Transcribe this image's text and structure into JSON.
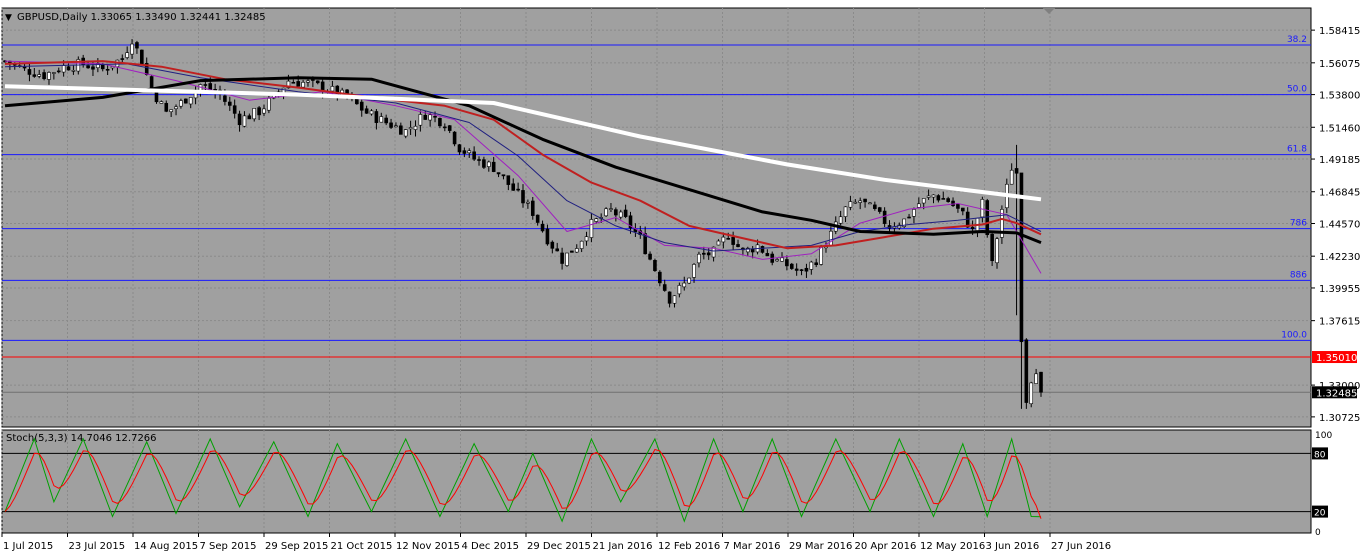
{
  "window": {
    "symbol_title": "GBPUSD,Daily",
    "ohlc": "1.33065 1.33490 1.32441 1.32485",
    "collapse_icon": "triangle-down-icon"
  },
  "colors": {
    "background": "#a0a0a0",
    "grid": "#8a8a8a",
    "candle_up": "#ffffff",
    "candle_down": "#000000",
    "ma_white": "#ffffff",
    "ma_black": "#000000",
    "ma_red": "#c02020",
    "ma_navy": "#202080",
    "ma_purple": "#a020c0",
    "fib_line": "#1a1aff",
    "price_line": "#ff0000",
    "stoch_main": "#00a000",
    "stoch_signal": "#ff0000"
  },
  "chart_data": [
    {
      "type": "candlestick",
      "title": "GBPUSD,Daily",
      "ylim": [
        1.3,
        1.6
      ],
      "y_ticks": [
        "1.58415",
        "1.56075",
        "1.53800",
        "1.51460",
        "1.49185",
        "1.46845",
        "1.44570",
        "1.42230",
        "1.39955",
        "1.37615",
        "1.35010",
        "1.33000",
        "1.32485",
        "1.30725"
      ],
      "x_tick_labels": [
        "1 Jul 2015",
        "23 Jul 2015",
        "14 Aug 2015",
        "7 Sep 2015",
        "29 Sep 2015",
        "21 Oct 2015",
        "12 Nov 2015",
        "4 Dec 2015",
        "29 Dec 2015",
        "21 Jan 2016",
        "12 Feb 2016",
        "7 Mar 2016",
        "29 Mar 2016",
        "20 Apr 2016",
        "12 May 2016",
        "3 Jun 2016",
        "27 Jun 2016"
      ],
      "close_path": [
        [
          0,
          1.562
        ],
        [
          4,
          1.556
        ],
        [
          8,
          1.552
        ],
        [
          12,
          1.558
        ],
        [
          16,
          1.56
        ],
        [
          20,
          1.556
        ],
        [
          24,
          1.564
        ],
        [
          26,
          1.578
        ],
        [
          28,
          1.562
        ],
        [
          30,
          1.542
        ],
        [
          33,
          1.525
        ],
        [
          36,
          1.532
        ],
        [
          40,
          1.545
        ],
        [
          44,
          1.538
        ],
        [
          48,
          1.52
        ],
        [
          52,
          1.526
        ],
        [
          55,
          1.536
        ],
        [
          58,
          1.548
        ],
        [
          62,
          1.546
        ],
        [
          66,
          1.542
        ],
        [
          70,
          1.536
        ],
        [
          74,
          1.525
        ],
        [
          78,
          1.518
        ],
        [
          82,
          1.512
        ],
        [
          86,
          1.524
        ],
        [
          90,
          1.518
        ],
        [
          93,
          1.5
        ],
        [
          96,
          1.492
        ],
        [
          100,
          1.486
        ],
        [
          104,
          1.47
        ],
        [
          108,
          1.454
        ],
        [
          111,
          1.435
        ],
        [
          114,
          1.42
        ],
        [
          117,
          1.43
        ],
        [
          120,
          1.445
        ],
        [
          124,
          1.455
        ],
        [
          127,
          1.448
        ],
        [
          130,
          1.435
        ],
        [
          133,
          1.413
        ],
        [
          136,
          1.392
        ],
        [
          139,
          1.402
        ],
        [
          142,
          1.422
        ],
        [
          145,
          1.425
        ],
        [
          148,
          1.438
        ],
        [
          151,
          1.425
        ],
        [
          154,
          1.43
        ],
        [
          157,
          1.42
        ],
        [
          160,
          1.416
        ],
        [
          163,
          1.41
        ],
        [
          166,
          1.42
        ],
        [
          169,
          1.438
        ],
        [
          172,
          1.456
        ],
        [
          175,
          1.462
        ],
        [
          178,
          1.454
        ],
        [
          181,
          1.444
        ],
        [
          184,
          1.448
        ],
        [
          187,
          1.46
        ],
        [
          190,
          1.466
        ],
        [
          193,
          1.462
        ],
        [
          196,
          1.452
        ],
        [
          198,
          1.44
        ],
        [
          200,
          1.46
        ],
        [
          202,
          1.416
        ],
        [
          204,
          1.456
        ],
        [
          206,
          1.486
        ],
        [
          207,
          1.482
        ],
        [
          208,
          1.365
        ],
        [
          209,
          1.32
        ],
        [
          210,
          1.335
        ],
        [
          211,
          1.342
        ],
        [
          212,
          1.3249
        ]
      ],
      "spike_bars": [
        {
          "i": 207,
          "high": 1.502,
          "low": 1.38
        },
        {
          "i": 208,
          "high": 1.39,
          "low": 1.313
        }
      ],
      "ma_white_200": [
        [
          0,
          1.544
        ],
        [
          60,
          1.538
        ],
        [
          100,
          1.532
        ],
        [
          130,
          1.508
        ],
        [
          160,
          1.488
        ],
        [
          180,
          1.477
        ],
        [
          196,
          1.47
        ],
        [
          212,
          1.463
        ]
      ],
      "ma_black_100": [
        [
          0,
          1.53
        ],
        [
          20,
          1.536
        ],
        [
          40,
          1.548
        ],
        [
          60,
          1.55
        ],
        [
          75,
          1.549
        ],
        [
          95,
          1.53
        ],
        [
          110,
          1.506
        ],
        [
          125,
          1.486
        ],
        [
          140,
          1.47
        ],
        [
          155,
          1.454
        ],
        [
          165,
          1.448
        ],
        [
          175,
          1.44
        ],
        [
          190,
          1.438
        ],
        [
          200,
          1.44
        ],
        [
          207,
          1.439
        ],
        [
          212,
          1.432
        ]
      ],
      "ma_red_50": [
        [
          0,
          1.56
        ],
        [
          20,
          1.562
        ],
        [
          32,
          1.558
        ],
        [
          45,
          1.549
        ],
        [
          60,
          1.543
        ],
        [
          75,
          1.536
        ],
        [
          90,
          1.53
        ],
        [
          100,
          1.52
        ],
        [
          110,
          1.495
        ],
        [
          120,
          1.475
        ],
        [
          130,
          1.462
        ],
        [
          140,
          1.444
        ],
        [
          150,
          1.436
        ],
        [
          160,
          1.428
        ],
        [
          170,
          1.43
        ],
        [
          180,
          1.436
        ],
        [
          190,
          1.442
        ],
        [
          200,
          1.445
        ],
        [
          204,
          1.449
        ],
        [
          207,
          1.446
        ],
        [
          212,
          1.438
        ]
      ],
      "ma_navy_30": [
        [
          0,
          1.558
        ],
        [
          25,
          1.56
        ],
        [
          40,
          1.55
        ],
        [
          60,
          1.54
        ],
        [
          80,
          1.532
        ],
        [
          95,
          1.518
        ],
        [
          105,
          1.494
        ],
        [
          115,
          1.462
        ],
        [
          125,
          1.444
        ],
        [
          135,
          1.432
        ],
        [
          145,
          1.426
        ],
        [
          155,
          1.428
        ],
        [
          165,
          1.43
        ],
        [
          175,
          1.44
        ],
        [
          185,
          1.445
        ],
        [
          195,
          1.448
        ],
        [
          205,
          1.452
        ],
        [
          212,
          1.44
        ]
      ],
      "ma_purple_20": [
        [
          0,
          1.562
        ],
        [
          20,
          1.56
        ],
        [
          35,
          1.548
        ],
        [
          50,
          1.534
        ],
        [
          65,
          1.54
        ],
        [
          80,
          1.53
        ],
        [
          92,
          1.52
        ],
        [
          105,
          1.48
        ],
        [
          115,
          1.44
        ],
        [
          125,
          1.45
        ],
        [
          135,
          1.43
        ],
        [
          145,
          1.428
        ],
        [
          155,
          1.42
        ],
        [
          165,
          1.424
        ],
        [
          175,
          1.446
        ],
        [
          185,
          1.456
        ],
        [
          195,
          1.46
        ],
        [
          205,
          1.452
        ],
        [
          212,
          1.41
        ]
      ],
      "fib_levels": [
        {
          "label": "38.2",
          "price": 1.5735
        },
        {
          "label": "50.0",
          "price": 1.538
        },
        {
          "label": "61.8",
          "price": 1.495
        },
        {
          "label": "786",
          "price": 1.442
        },
        {
          "label": "886",
          "price": 1.405
        },
        {
          "label": "100.0",
          "price": 1.362
        }
      ],
      "current_price_line": {
        "label": "1.35010",
        "price": 1.3501
      },
      "last_price": {
        "label": "1.32485",
        "price": 1.32485
      }
    },
    {
      "type": "line",
      "title": "Stoch(5,3,3) 14.7046 12.7266",
      "ylim": [
        0,
        100
      ],
      "y_ticks": [
        "100",
        "80",
        "20",
        "0"
      ],
      "levels": [
        80,
        20
      ],
      "cycle_points": [
        [
          0,
          20
        ],
        [
          6,
          95
        ],
        [
          10,
          30
        ],
        [
          16,
          95
        ],
        [
          22,
          15
        ],
        [
          29,
          92
        ],
        [
          35,
          18
        ],
        [
          42,
          95
        ],
        [
          48,
          25
        ],
        [
          55,
          92
        ],
        [
          62,
          15
        ],
        [
          68,
          90
        ],
        [
          75,
          20
        ],
        [
          82,
          95
        ],
        [
          89,
          15
        ],
        [
          96,
          90
        ],
        [
          103,
          20
        ],
        [
          108,
          80
        ],
        [
          114,
          10
        ],
        [
          120,
          95
        ],
        [
          126,
          30
        ],
        [
          133,
          95
        ],
        [
          139,
          10
        ],
        [
          145,
          95
        ],
        [
          151,
          20
        ],
        [
          157,
          95
        ],
        [
          163,
          15
        ],
        [
          170,
          95
        ],
        [
          177,
          20
        ],
        [
          183,
          95
        ],
        [
          190,
          15
        ],
        [
          196,
          90
        ],
        [
          201,
          15
        ],
        [
          206,
          95
        ],
        [
          210,
          15
        ],
        [
          212,
          14.7
        ]
      ]
    }
  ]
}
